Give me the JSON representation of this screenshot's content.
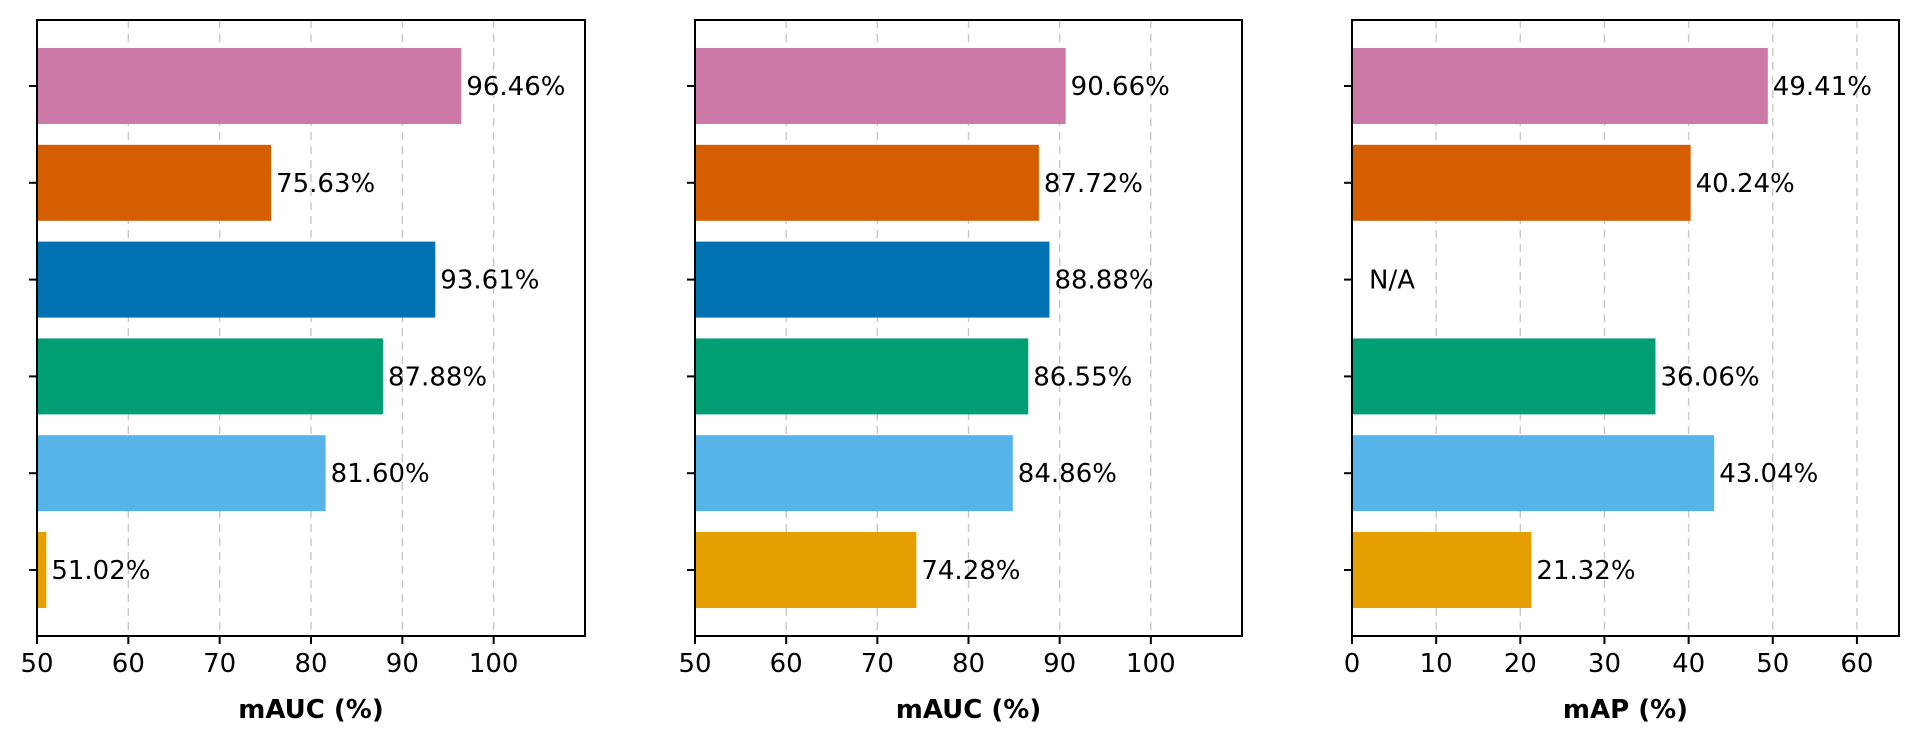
{
  "chart_data": [
    {
      "type": "bar",
      "orientation": "horizontal",
      "xlabel": "mAUC (%)",
      "xlim": [
        50,
        110
      ],
      "xticks": [
        50,
        60,
        70,
        80,
        90,
        100
      ],
      "grid": "x, dashed",
      "values": [
        96.46,
        75.63,
        93.61,
        87.88,
        81.6,
        51.02
      ],
      "value_labels": [
        "96.46%",
        "75.63%",
        "93.61%",
        "87.88%",
        "81.60%",
        "51.02%"
      ],
      "colors": [
        "#CC79A7",
        "#D55E00",
        "#0072B2",
        "#009E73",
        "#56B4E9",
        "#E69F00"
      ]
    },
    {
      "type": "bar",
      "orientation": "horizontal",
      "xlabel": "mAUC (%)",
      "xlim": [
        50,
        110
      ],
      "xticks": [
        50,
        60,
        70,
        80,
        90,
        100
      ],
      "grid": "x, dashed",
      "values": [
        90.66,
        87.72,
        88.88,
        86.55,
        84.86,
        74.28
      ],
      "value_labels": [
        "90.66%",
        "87.72%",
        "88.88%",
        "86.55%",
        "84.86%",
        "74.28%"
      ],
      "colors": [
        "#CC79A7",
        "#D55E00",
        "#0072B2",
        "#009E73",
        "#56B4E9",
        "#E69F00"
      ]
    },
    {
      "type": "bar",
      "orientation": "horizontal",
      "xlabel": "mAP (%)",
      "xlim": [
        0,
        65
      ],
      "xticks": [
        0,
        10,
        20,
        30,
        40,
        50,
        60
      ],
      "grid": "x, dashed",
      "values": [
        49.41,
        40.24,
        null,
        36.06,
        43.04,
        21.32
      ],
      "value_labels": [
        "49.41%",
        "40.24%",
        "N/A",
        "36.06%",
        "43.04%",
        "21.32%"
      ],
      "colors": [
        "#CC79A7",
        "#D55E00",
        "#0072B2",
        "#009E73",
        "#56B4E9",
        "#E69F00"
      ]
    }
  ]
}
